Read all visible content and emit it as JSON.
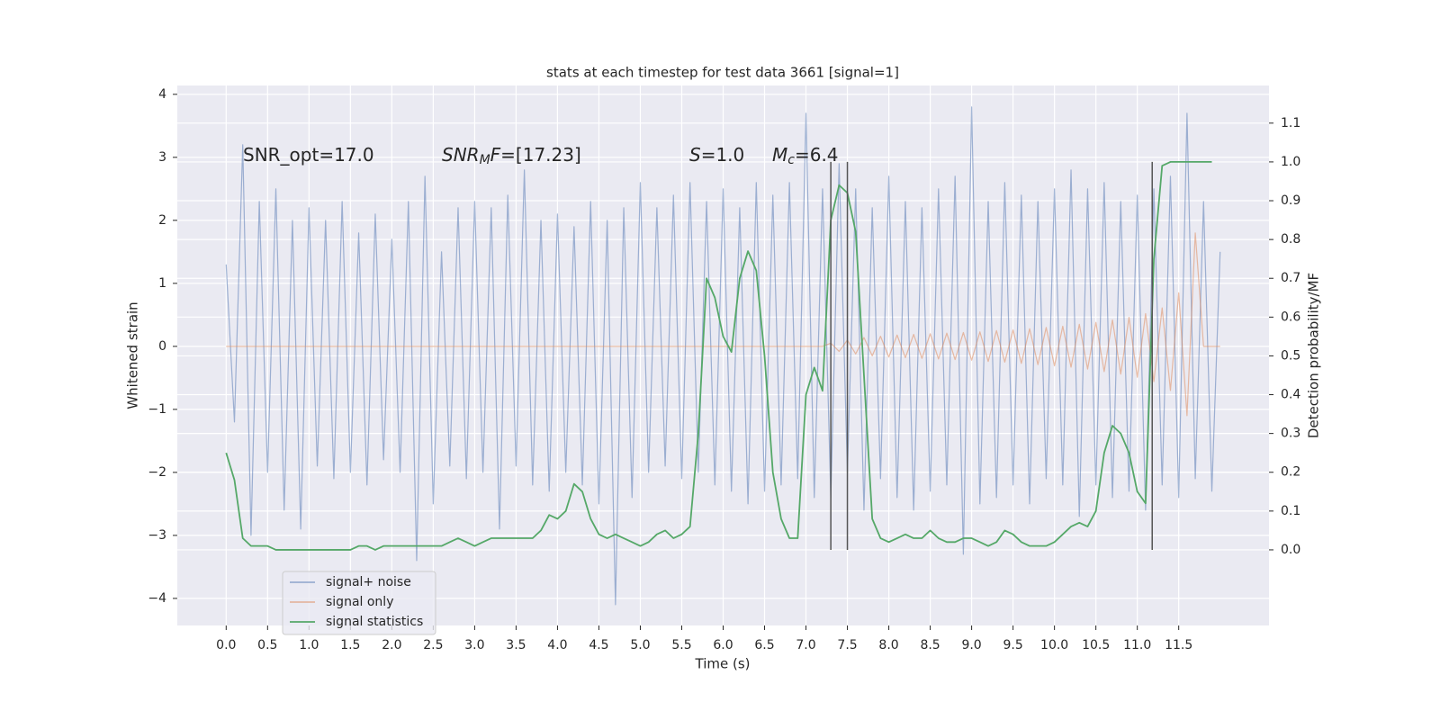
{
  "chart_data": {
    "type": "line",
    "title": "stats at each timestep for test data 3661 [signal=1]",
    "xlabel": "Time (s)",
    "ylabel": "Whitened strain",
    "y2label": "Detection probability/MF",
    "x": [
      0,
      0.1,
      0.2,
      0.3,
      0.4,
      0.5,
      0.6,
      0.7,
      0.8,
      0.9,
      1,
      1.1,
      1.2,
      1.3,
      1.4,
      1.5,
      1.6,
      1.7,
      1.8,
      1.9,
      2,
      2.1,
      2.2,
      2.3,
      2.4,
      2.5,
      2.6,
      2.7,
      2.8,
      2.9,
      3,
      3.1,
      3.2,
      3.3,
      3.4,
      3.5,
      3.6,
      3.7,
      3.8,
      3.9,
      4,
      4.1,
      4.2,
      4.3,
      4.4,
      4.5,
      4.6,
      4.7,
      4.8,
      4.9,
      5,
      5.1,
      5.2,
      5.3,
      5.4,
      5.5,
      5.6,
      5.7,
      5.8,
      5.9,
      6,
      6.1,
      6.2,
      6.3,
      6.4,
      6.5,
      6.6,
      6.7,
      6.8,
      6.9,
      7,
      7.1,
      7.2,
      7.3,
      7.4,
      7.5,
      7.6,
      7.7,
      7.8,
      7.9,
      8,
      8.1,
      8.2,
      8.3,
      8.4,
      8.5,
      8.6,
      8.7,
      8.8,
      8.9,
      9,
      9.1,
      9.2,
      9.3,
      9.4,
      9.5,
      9.6,
      9.7,
      9.8,
      9.9,
      10,
      10.1,
      10.2,
      10.3,
      10.4,
      10.5,
      10.6,
      10.7,
      10.8,
      10.9,
      11,
      11.1,
      11.2,
      11.3,
      11.4,
      11.5,
      11.6,
      11.7,
      11.8,
      11.9,
      12
    ],
    "series": [
      {
        "name": "signal+ noise",
        "color": "#4c72b0",
        "alpha": 0.5,
        "axis": "y",
        "values": [
          1.3,
          -1.2,
          3.2,
          -3.0,
          2.3,
          -2.0,
          2.5,
          -2.6,
          2.0,
          -2.9,
          2.2,
          -1.9,
          2.0,
          -2.1,
          2.3,
          -2.0,
          1.8,
          -2.2,
          2.1,
          -1.8,
          1.7,
          -2.0,
          2.3,
          -3.4,
          2.7,
          -2.5,
          1.5,
          -1.9,
          2.2,
          -2.1,
          2.3,
          -2.0,
          2.2,
          -2.9,
          2.4,
          -1.9,
          2.8,
          -2.2,
          2.0,
          -2.3,
          2.1,
          -2.0,
          1.9,
          -2.2,
          2.3,
          -2.5,
          2.0,
          -4.1,
          2.2,
          -2.4,
          2.6,
          -2.0,
          2.2,
          -1.9,
          2.4,
          -2.1,
          2.6,
          -2.0,
          2.3,
          -2.2,
          2.5,
          -2.3,
          2.2,
          -2.5,
          2.6,
          -2.3,
          2.4,
          -2.2,
          2.6,
          -2.1,
          3.7,
          -2.4,
          2.5,
          -2.4,
          2.9,
          -2.0,
          2.5,
          -2.6,
          2.2,
          -2.1,
          2.7,
          -2.4,
          2.3,
          -2.6,
          2.2,
          -2.3,
          2.5,
          -2.2,
          2.7,
          -3.3,
          3.8,
          -2.5,
          2.3,
          -2.4,
          2.6,
          -2.2,
          2.4,
          -2.5,
          2.3,
          -2.1,
          2.5,
          -2.2,
          2.8,
          -2.7,
          2.5,
          -2.2,
          2.6,
          -2.4,
          2.3,
          -2.3,
          2.4,
          -2.6,
          2.5,
          -2.2,
          2.7,
          -2.4,
          3.7,
          -2.1,
          2.3,
          -2.3,
          1.5
        ]
      },
      {
        "name": "signal only",
        "color": "#dd8452",
        "alpha": 0.5,
        "axis": "y",
        "values": [
          0,
          0,
          0,
          0,
          0,
          0,
          0,
          0,
          0,
          0,
          0,
          0,
          0,
          0,
          0,
          0,
          0,
          0,
          0,
          0,
          0,
          0,
          0,
          0,
          0,
          0,
          0,
          0,
          0,
          0,
          0,
          0,
          0,
          0,
          0,
          0,
          0,
          0,
          0,
          0,
          0,
          0,
          0,
          0,
          0,
          0,
          0,
          0,
          0,
          0,
          0,
          0,
          0,
          0,
          0,
          0,
          0,
          0,
          0,
          0,
          0,
          0,
          0,
          0,
          0,
          0,
          0,
          0,
          0,
          0,
          0,
          0,
          0,
          0.05,
          -0.08,
          0.1,
          -0.12,
          0.14,
          -0.15,
          0.16,
          -0.17,
          0.18,
          -0.18,
          0.19,
          -0.19,
          0.2,
          -0.2,
          0.21,
          -0.21,
          0.22,
          -0.22,
          0.23,
          -0.24,
          0.25,
          -0.25,
          0.26,
          -0.27,
          0.28,
          -0.29,
          0.3,
          -0.31,
          0.32,
          -0.33,
          0.35,
          -0.36,
          0.38,
          -0.4,
          0.42,
          -0.44,
          0.46,
          -0.49,
          0.52,
          -0.56,
          0.61,
          -0.7,
          0.85,
          -1.1,
          1.8,
          0,
          0,
          0
        ]
      },
      {
        "name": "signal statistics",
        "color": "#55a868",
        "alpha": 1,
        "axis": "y2",
        "values": [
          0.25,
          0.18,
          0.03,
          0.01,
          0.01,
          0.01,
          0,
          0,
          0,
          0,
          0,
          0,
          0,
          0,
          0,
          0,
          0.01,
          0.01,
          0,
          0.01,
          0.01,
          0.01,
          0.01,
          0.01,
          0.01,
          0.01,
          0.01,
          0.02,
          0.03,
          0.02,
          0.01,
          0.02,
          0.03,
          0.03,
          0.03,
          0.03,
          0.03,
          0.03,
          0.05,
          0.09,
          0.08,
          0.1,
          0.17,
          0.15,
          0.08,
          0.04,
          0.03,
          0.04,
          0.03,
          0.02,
          0.01,
          0.02,
          0.04,
          0.05,
          0.03,
          0.04,
          0.06,
          0.3,
          0.7,
          0.65,
          0.55,
          0.51,
          0.7,
          0.77,
          0.72,
          0.5,
          0.2,
          0.08,
          0.03,
          0.03,
          0.4,
          0.47,
          0.41,
          0.85,
          0.94,
          0.92,
          0.82,
          0.45,
          0.08,
          0.03,
          0.02,
          0.03,
          0.04,
          0.03,
          0.03,
          0.05,
          0.03,
          0.02,
          0.02,
          0.03,
          0.03,
          0.02,
          0.01,
          0.02,
          0.05,
          0.04,
          0.02,
          0.01,
          0.01,
          0.01,
          0.02,
          0.04,
          0.06,
          0.07,
          0.06,
          0.1,
          0.25,
          0.32,
          0.3,
          0.25,
          0.15,
          0.12,
          0.75,
          0.99,
          1,
          1,
          1,
          1,
          1,
          1,
          null
        ]
      }
    ],
    "vlines": {
      "x": [
        7.3,
        7.5,
        11.18
      ],
      "ymin": 0,
      "ymax": 1,
      "axis": "y2",
      "color": "#555555"
    },
    "annotations": [
      [
        {
          "text": "SNR_opt=17.0"
        }
      ],
      [
        {
          "text": "SNR",
          "style": "italic"
        },
        {
          "text": "M",
          "style": "sub"
        },
        {
          "text": "F",
          "style": "italic"
        },
        {
          "text": "=[17.23]"
        }
      ],
      [
        {
          "text": "S",
          "style": "italic"
        },
        {
          "text": "=1.0"
        }
      ],
      [
        {
          "text": "M",
          "style": "italic"
        },
        {
          "text": "c",
          "style": "sub"
        },
        {
          "text": "=6.4"
        }
      ]
    ],
    "xlim": [
      -0.59,
      12.59
    ],
    "xticks": [
      {
        "value": 0,
        "label": "0.0"
      },
      0.5,
      {
        "value": 1,
        "label": "1.0"
      },
      1.5,
      {
        "value": 2,
        "label": "2.0"
      },
      2.5,
      {
        "value": 3,
        "label": "3.0"
      },
      3.5,
      {
        "value": 4,
        "label": "4.0"
      },
      4.5,
      {
        "value": 5,
        "label": "5.0"
      },
      5.5,
      {
        "value": 6,
        "label": "6.0"
      },
      6.5,
      {
        "value": 7,
        "label": "7.0"
      },
      7.5,
      {
        "value": 8,
        "label": "8.0"
      },
      8.5,
      {
        "value": 9,
        "label": "9.0"
      },
      9.5,
      {
        "value": 10,
        "label": "10.0"
      },
      10.5,
      {
        "value": 11,
        "label": "11.0"
      },
      11.5
    ],
    "ylim": [
      -4.43,
      4.14
    ],
    "yticks": [
      {
        "value": -4,
        "label": "−4"
      },
      {
        "value": -3,
        "label": "−3"
      },
      {
        "value": -2,
        "label": "−2"
      },
      {
        "value": -1,
        "label": "−1"
      },
      0,
      1,
      2,
      3,
      4
    ],
    "y2lim": [
      -0.195,
      1.197
    ],
    "y2ticks": [
      {
        "value": 0,
        "label": "0.0"
      },
      0.1,
      0.2,
      0.3,
      0.4,
      0.5,
      0.6,
      0.7,
      0.8,
      0.9,
      {
        "value": 1,
        "label": "1.0"
      },
      1.1
    ],
    "grid": true,
    "legend": "lower left"
  }
}
